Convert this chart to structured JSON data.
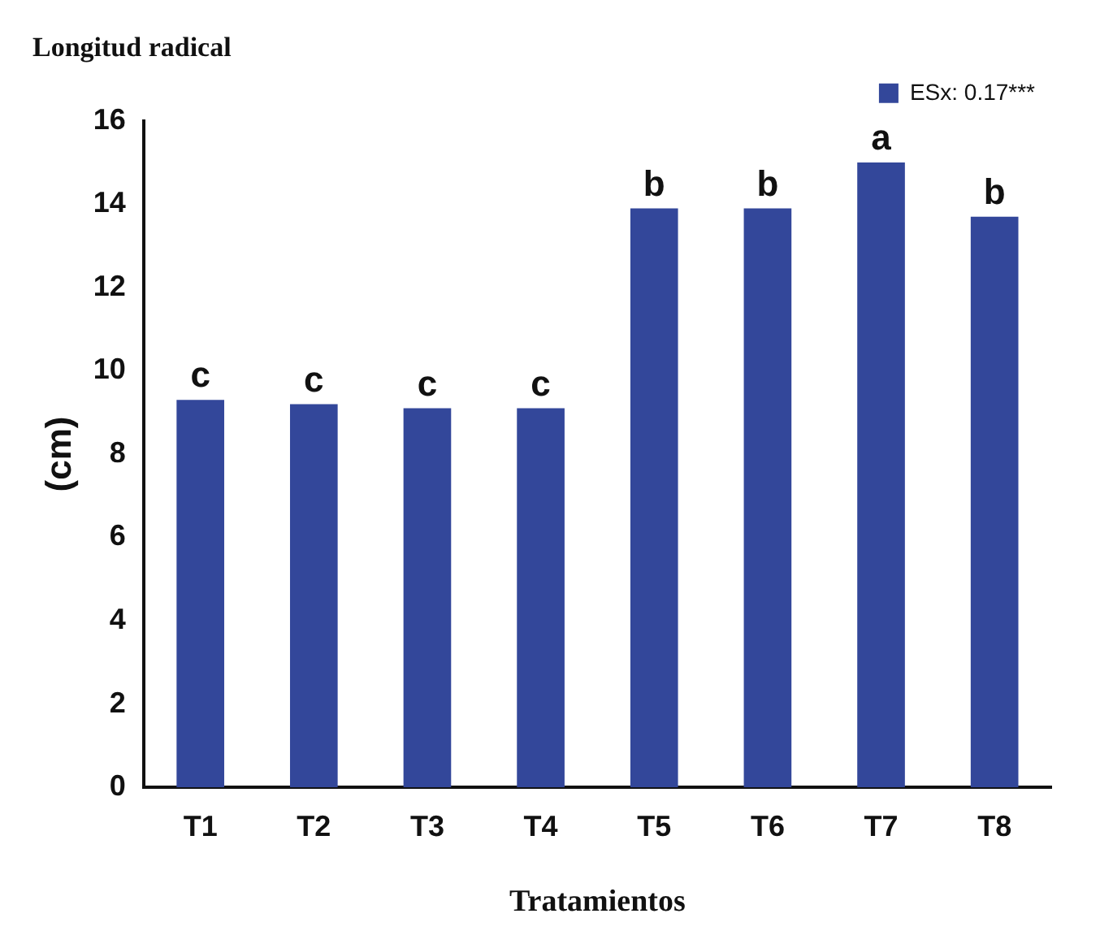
{
  "chart_data": {
    "type": "bar",
    "title": "Longitud radical",
    "xlabel": "Tratamientos",
    "ylabel": "(cm)",
    "categories": [
      "T1",
      "T2",
      "T3",
      "T4",
      "T5",
      "T6",
      "T7",
      "T8"
    ],
    "series": [
      {
        "name": "ESx: 0.17***",
        "color": "#33479a",
        "values": [
          9.3,
          9.2,
          9.1,
          9.1,
          13.9,
          13.9,
          15.0,
          13.7
        ]
      }
    ],
    "ylim": [
      0,
      16
    ],
    "yticks": [
      0,
      2,
      4,
      6,
      8,
      10,
      12,
      14,
      16
    ],
    "grid": false,
    "legend": "top right",
    "annotations": [
      {
        "text": "c",
        "x": "T1",
        "y": 9.3
      },
      {
        "text": "c",
        "x": "T2",
        "y": 9.2
      },
      {
        "text": "c",
        "x": "T3",
        "y": 9.1
      },
      {
        "text": "c",
        "x": "T4",
        "y": 9.1
      },
      {
        "text": "b",
        "x": "T5",
        "y": 13.9
      },
      {
        "text": "b",
        "x": "T6",
        "y": 13.9
      },
      {
        "text": "a",
        "x": "T7",
        "y": 15.0
      },
      {
        "text": "b",
        "x": "T8",
        "y": 13.7
      }
    ]
  }
}
